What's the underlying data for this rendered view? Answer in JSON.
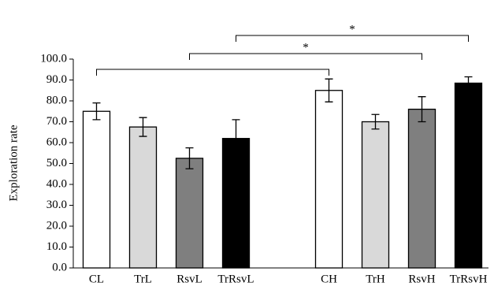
{
  "chart_data": {
    "type": "bar",
    "y_label": "Exploration rate",
    "categories": [
      "CL",
      "TrL",
      "RsvL",
      "TrRsvL",
      null,
      "CH",
      "TrH",
      "RsvH",
      "TrRsvH"
    ],
    "values": [
      75,
      67.5,
      52.5,
      62,
      null,
      85,
      70,
      76,
      88.5
    ],
    "errors": [
      4,
      4.5,
      5,
      9,
      null,
      5.5,
      3.5,
      6,
      3
    ],
    "colors": [
      "#ffffff",
      "#d9d9d9",
      "#7f7f7f",
      "#000000",
      null,
      "#ffffff",
      "#d9d9d9",
      "#7f7f7f",
      "#000000"
    ],
    "ylim": [
      0,
      100
    ],
    "yticks": [
      {
        "value": 0,
        "label": "0.0"
      },
      {
        "value": 10,
        "label": "10.0"
      },
      {
        "value": 20,
        "label": "20.0"
      },
      {
        "value": 30,
        "label": "30.0"
      },
      {
        "value": 40,
        "label": "40.0"
      },
      {
        "value": 50,
        "label": "50.0"
      },
      {
        "value": 60,
        "label": "60.0"
      },
      {
        "value": 70,
        "label": "70.0"
      },
      {
        "value": 80,
        "label": "80.0"
      },
      {
        "value": 90,
        "label": "90.0"
      },
      {
        "value": 100,
        "label": "100.0"
      }
    ],
    "significance": [
      {
        "between": [
          "CL",
          "CH"
        ]
      },
      {
        "between": [
          "RsvL",
          "RsvH"
        ],
        "label": "*"
      },
      {
        "between": [
          "TrRsvL",
          "TrRsvH"
        ],
        "label": "*"
      }
    ]
  }
}
